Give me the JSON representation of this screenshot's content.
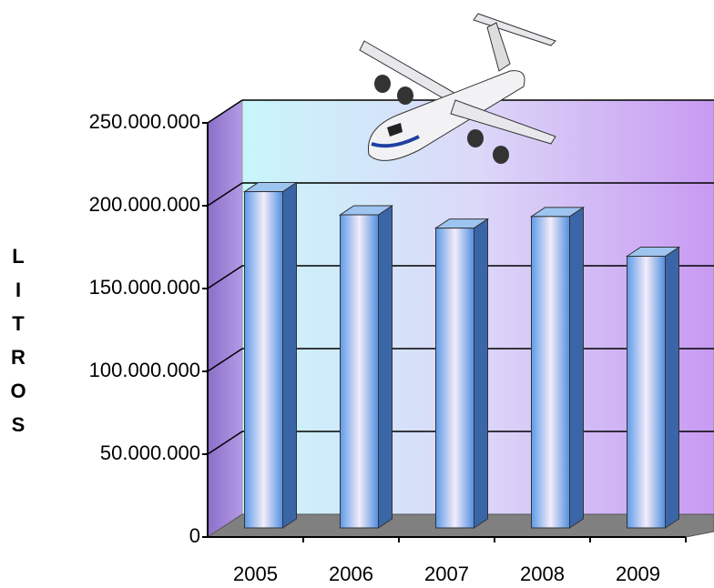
{
  "chart_data": {
    "type": "bar3d",
    "y_label": "LITROS",
    "categories": [
      "2005",
      "2006",
      "2007",
      "2008",
      "2009"
    ],
    "values": [
      203000000,
      189000000,
      181000000,
      188000000,
      164000000
    ],
    "color": "#4f8fe0",
    "ylim": [
      0,
      250000000
    ],
    "yticks": [
      0,
      {
        "value": 50000000,
        "label": "50.000.000"
      },
      {
        "value": 100000000,
        "label": "100.000.000"
      },
      {
        "value": 150000000,
        "label": "150.000.000"
      },
      {
        "value": 200000000,
        "label": "200.000.000"
      },
      {
        "value": 250000000,
        "label": "250.000.000"
      }
    ],
    "grid": true
  }
}
